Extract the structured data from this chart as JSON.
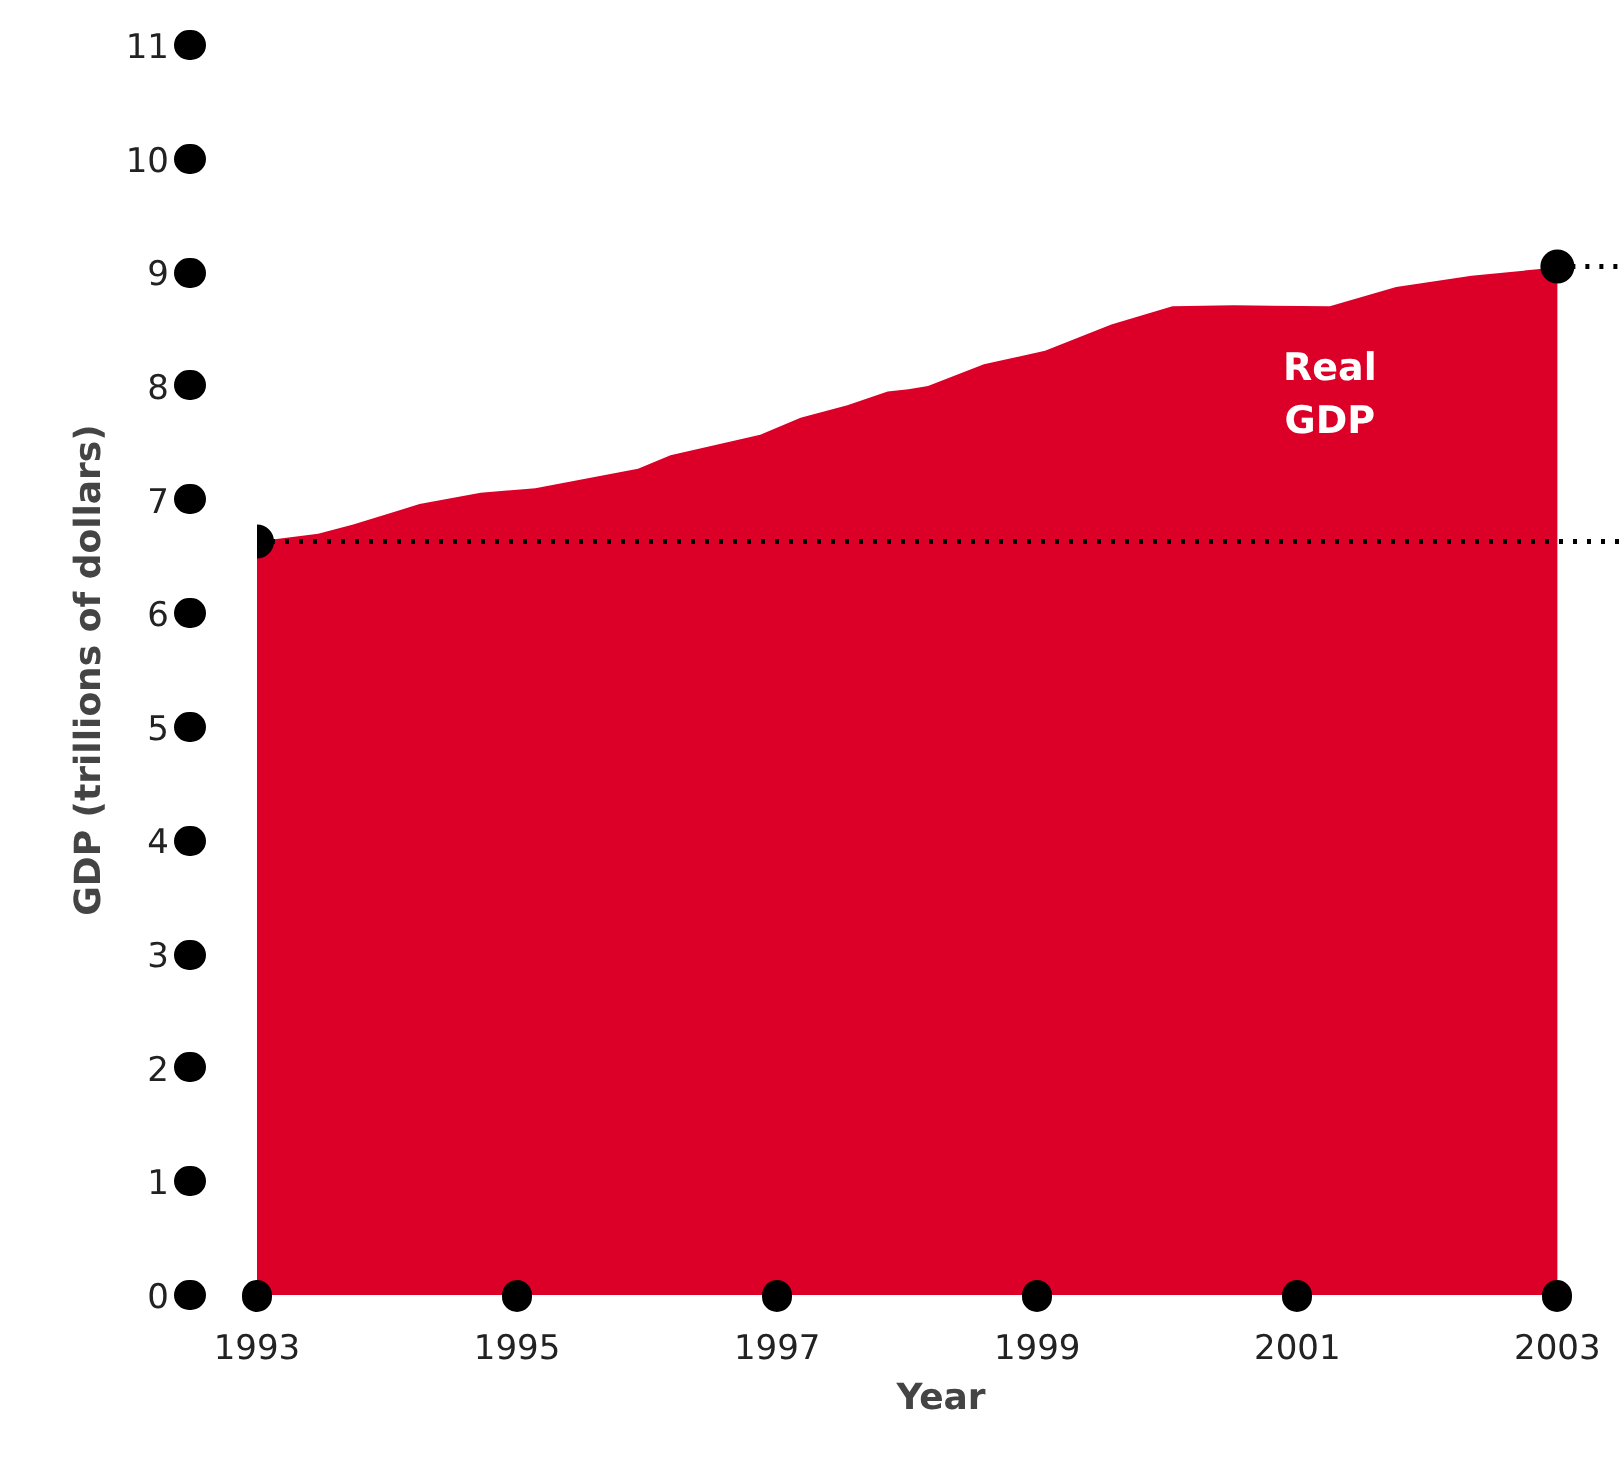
{
  "chart_data": {
    "type": "area",
    "xlabel": "Year",
    "ylabel": "GDP (trillions of dollars)",
    "series": [
      {
        "name": "Real GDP",
        "color": "#dc0028",
        "x": [
          1993.0,
          1993.47,
          1993.74,
          1994.25,
          1994.72,
          1995.14,
          1995.93,
          1996.18,
          1996.87,
          1997.18,
          1997.54,
          1997.85,
          1998.01,
          1998.16,
          1998.59,
          1999.06,
          1999.57,
          2000.04,
          2000.51,
          2001.25,
          2001.76,
          2002.34,
          2002.97,
          2003.0
        ],
        "values": [
          6.63,
          6.7,
          6.78,
          6.96,
          7.06,
          7.1,
          7.27,
          7.39,
          7.57,
          7.72,
          7.83,
          7.95,
          7.97,
          8.0,
          8.19,
          8.31,
          8.54,
          8.7,
          8.71,
          8.7,
          8.87,
          8.97,
          9.04,
          9.05
        ]
      },
      {
        "type": "line",
        "line_style": "dotted",
        "color": "#000000",
        "x": [
          2003,
          2003.52
        ],
        "values": [
          9.05,
          9.05
        ]
      },
      {
        "type": "scatter",
        "color": "#000000",
        "x": [
          1993,
          2003
        ],
        "values": [
          6.63,
          9.05
        ]
      }
    ],
    "xlim": [
      1993,
      2003.52
    ],
    "ylim": [
      0,
      11
    ],
    "xticks": [
      1993,
      1995,
      1997,
      1999,
      2001,
      2003
    ],
    "yticks": [
      0,
      1,
      2,
      3,
      4,
      5,
      6,
      7,
      8,
      9,
      10,
      11
    ],
    "ref_lines": [
      {
        "axis": "y",
        "value": 6.63,
        "line_style": "dotted",
        "color": "#000000"
      }
    ],
    "grid": false
  }
}
